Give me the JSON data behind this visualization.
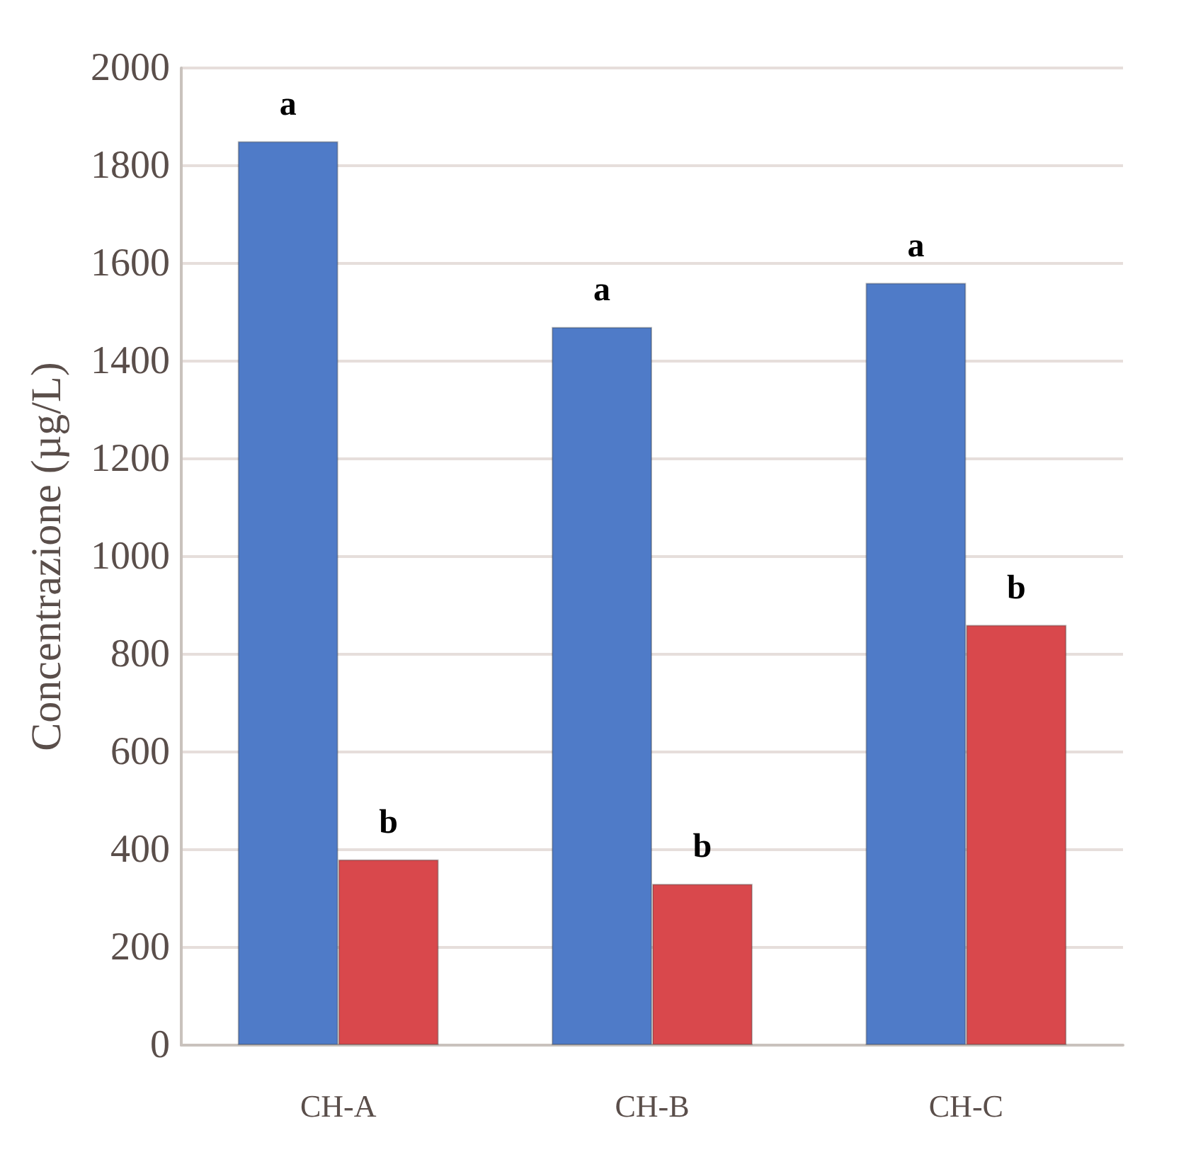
{
  "chart_data": {
    "type": "bar",
    "ylabel": "Concentrazione (µg/L)",
    "categories": [
      "CH-A",
      "CH-B",
      "CH-C"
    ],
    "series": [
      {
        "color": "#4f7bc8",
        "values": [
          1850,
          1470,
          1560
        ]
      },
      {
        "color": "#d9484c",
        "values": [
          380,
          330,
          860
        ]
      }
    ],
    "ylim": [
      0,
      2000
    ],
    "yticks": [
      0,
      200,
      400,
      600,
      800,
      1000,
      1200,
      1400,
      1600,
      1800,
      2000
    ],
    "grid": "y",
    "annotations": [
      {
        "text": "a",
        "x": "CH-A",
        "y": 1850
      },
      {
        "text": "b",
        "x": "CH-A",
        "y": 380
      },
      {
        "text": "a",
        "x": "CH-B",
        "y": 1470
      },
      {
        "text": "b",
        "x": "CH-B",
        "y": 330
      },
      {
        "text": "a",
        "x": "CH-C",
        "y": 1560
      },
      {
        "text": "b",
        "x": "CH-C",
        "y": 860
      }
    ]
  }
}
